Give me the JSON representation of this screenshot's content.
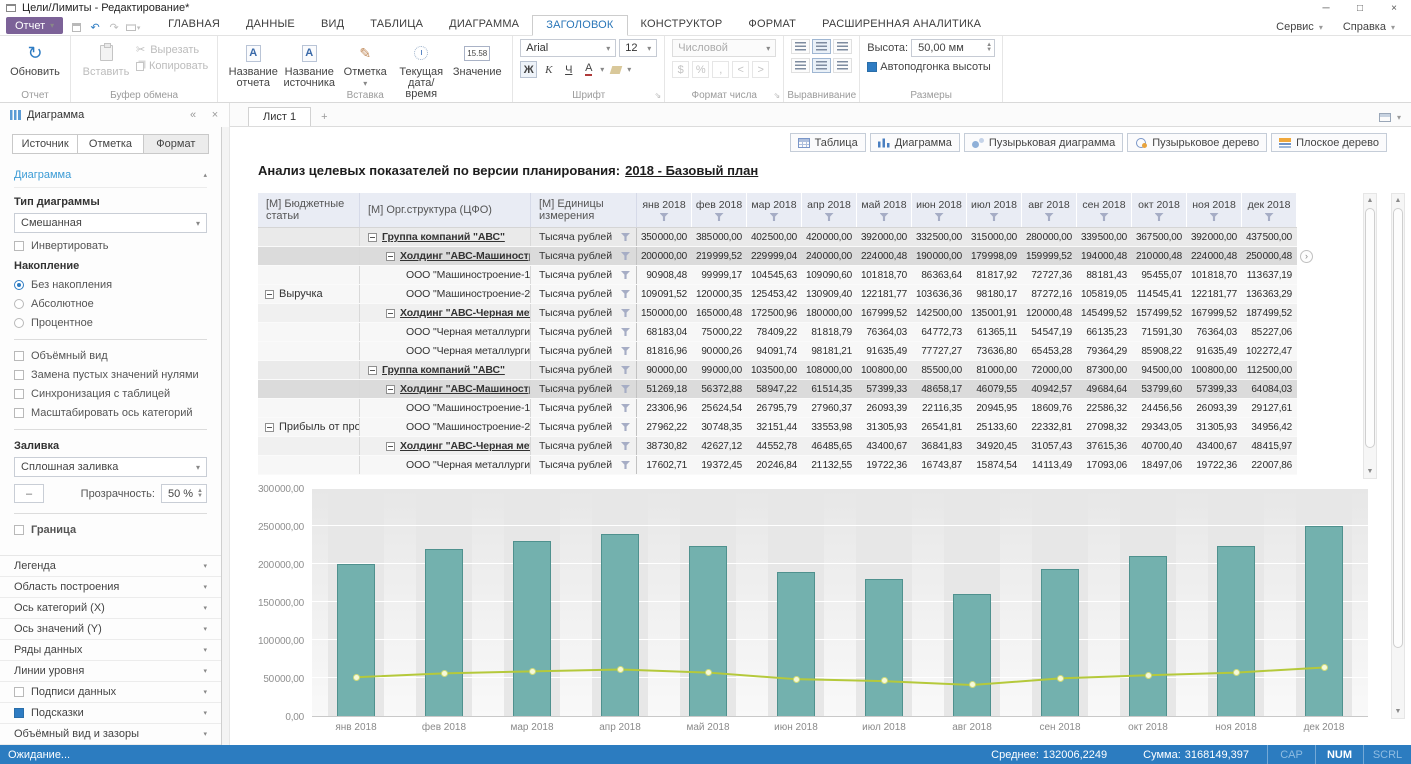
{
  "window": {
    "title": "Цели/Лимиты - Редактирование*",
    "minimize": "─",
    "maximize": "□",
    "close": "×"
  },
  "ribbon": {
    "report_button": "Отчет",
    "tabs": [
      {
        "label": "ГЛАВНАЯ"
      },
      {
        "label": "ДАННЫЕ"
      },
      {
        "label": "ВИД"
      },
      {
        "label": "ТАБЛИЦА"
      },
      {
        "label": "ДИАГРАММА"
      },
      {
        "label": "ЗАГОЛОВОК",
        "active": true
      },
      {
        "label": "КОНСТРУКТОР"
      },
      {
        "label": "ФОРМАТ"
      },
      {
        "label": "РАСШИРЕННАЯ АНАЛИТИКА"
      }
    ],
    "menus": [
      "Сервис",
      "Справка"
    ],
    "groups": {
      "report": {
        "label": "Отчет",
        "refresh": "Обновить"
      },
      "clipboard": {
        "label": "Буфер обмена",
        "paste": "Вставить",
        "cut": "Вырезать",
        "copy": "Копировать"
      },
      "insert": {
        "label": "Вставка",
        "report_name": "Название отчета",
        "source_name": "Название источника",
        "mark": "Отметка",
        "datetime": "Текущая дата/время",
        "value": "Значение",
        "value_icon": "15.58"
      },
      "font": {
        "label": "Шрифт",
        "family": "Arial",
        "size": "12",
        "bold": "Ж",
        "italic": "К",
        "underline": "Ч",
        "color": "А"
      },
      "number": {
        "label": "Формат числа",
        "format": "Числовой",
        "buttons": [
          "$",
          "%",
          ",",
          "<",
          ">"
        ]
      },
      "align": {
        "label": "Выравнивание"
      },
      "size": {
        "label": "Размеры",
        "height_label": "Высота:",
        "height_value": "50,00 мм",
        "autofit": "Автоподгонка высоты"
      }
    }
  },
  "left_panel": {
    "title": "Диаграмма",
    "tabs": [
      {
        "label": "Источник"
      },
      {
        "label": "Отметка"
      },
      {
        "label": "Формат",
        "active": true
      }
    ],
    "section": "Диаграмма",
    "type_label": "Тип диаграммы",
    "type_value": "Смешанная",
    "invert": "Инвертировать",
    "accum_label": "Накопление",
    "accum_options": [
      {
        "label": "Без накопления",
        "selected": true
      },
      {
        "label": "Абсолютное"
      },
      {
        "label": "Процентное"
      }
    ],
    "checkboxes": [
      "Объёмный вид",
      "Замена пустых значений нулями",
      "Синхронизация с таблицей",
      "Масштабировать ось категорий"
    ],
    "fill_label": "Заливка",
    "fill_value": "Сплошная заливка",
    "transparency_label": "Прозрачность:",
    "transparency_value": "50 %",
    "border_label": "Граница",
    "accordion": [
      {
        "label": "Легенда"
      },
      {
        "label": "Область построения"
      },
      {
        "label": "Ось категорий (X)"
      },
      {
        "label": "Ось значений (Y)"
      },
      {
        "label": "Ряды данных"
      },
      {
        "label": "Линии уровня"
      },
      {
        "label": "Подписи данных",
        "checkbox": "unchecked"
      },
      {
        "label": "Подсказки",
        "checkbox": "checked"
      },
      {
        "label": "Объёмный вид и зазоры"
      }
    ]
  },
  "sheet": {
    "tab": "Лист 1",
    "add": "+"
  },
  "main": {
    "view_buttons": [
      {
        "label": "Таблица",
        "icon": "table"
      },
      {
        "label": "Диаграмма",
        "icon": "bar-chart"
      },
      {
        "label": "Пузырьковая диаграмма",
        "icon": "bubble-chart"
      },
      {
        "label": "Пузырьковое дерево",
        "icon": "bubble-tree"
      },
      {
        "label": "Плоское дерево",
        "icon": "flat-tree"
      }
    ],
    "title_prefix": "Анализ целевых показателей по версии планирования:",
    "title_version": "2018 - Базовый план"
  },
  "table": {
    "dim_headers": [
      "[М] Бюджетные статьи",
      "[М] Орг.структура (ЦФО)",
      "[М] Единицы измерения"
    ],
    "months": [
      "янв 2018",
      "фев 2018",
      "мар 2018",
      "апр 2018",
      "май 2018",
      "июн 2018",
      "июл 2018",
      "авг 2018",
      "сен 2018",
      "окт 2018",
      "ноя 2018",
      "дек 2018"
    ],
    "units_value": "Тысяча рублей",
    "groups": [
      {
        "label": "Выручка",
        "start": 0,
        "span": 7
      },
      {
        "label": "Прибыль от продаж",
        "start": 7,
        "span": 6
      }
    ],
    "rows": [
      {
        "level": 0,
        "org": "Группа компаний \"АВС\"",
        "selected": false,
        "values": [
          "350 000,00",
          "385 000,00",
          "402 500,00",
          "420 000,00",
          "392 000,00",
          "332 500,00",
          "315 000,00",
          "280 000,00",
          "339 500,00",
          "367 500,00",
          "392 000,00",
          "437 500,00"
        ]
      },
      {
        "level": 1,
        "org": "Холдинг \"АВС-Машиностроение\"",
        "selected": true,
        "values": [
          "200 000,00",
          "219 999,52",
          "229 999,04",
          "240 000,00",
          "224 000,48",
          "190 000,00",
          "179 998,09",
          "159 999,52",
          "194 000,48",
          "210 000,48",
          "224 000,48",
          "250 000,48"
        ]
      },
      {
        "level": 2,
        "org": "ООО \"Машиностроение-1\"",
        "selected": false,
        "values": [
          "90 908,48",
          "99 999,17",
          "104 545,63",
          "109 090,60",
          "101 818,70",
          "86 363,64",
          "81 817,92",
          "72 727,36",
          "88 181,43",
          "95 455,07",
          "101 818,70",
          "113 637,19"
        ]
      },
      {
        "level": 2,
        "org": "ООО \"Машиностроение-2\"",
        "selected": false,
        "values": [
          "109 091,52",
          "120 000,35",
          "125 453,42",
          "130 909,40",
          "122 181,77",
          "103 636,36",
          "98 180,17",
          "87 272,16",
          "105 819,05",
          "114 545,41",
          "122 181,77",
          "136 363,29"
        ]
      },
      {
        "level": 1,
        "org": "Холдинг \"АВС-Черная металлургия\"",
        "selected": false,
        "values": [
          "150 000,00",
          "165 000,48",
          "172 500,96",
          "180 000,00",
          "167 999,52",
          "142 500,00",
          "135 001,91",
          "120 000,48",
          "145 499,52",
          "157 499,52",
          "167 999,52",
          "187 499,52"
        ]
      },
      {
        "level": 2,
        "org": "ООО \"Черная металлургия-1\"",
        "selected": false,
        "values": [
          "68 183,04",
          "75 000,22",
          "78 409,22",
          "81 818,79",
          "76 364,03",
          "64 772,73",
          "61 365,11",
          "54 547,19",
          "66 135,23",
          "71 591,30",
          "76 364,03",
          "85 227,06"
        ]
      },
      {
        "level": 2,
        "org": "ООО \"Черная металлургия-2\"",
        "selected": false,
        "values": [
          "81 816,96",
          "90 000,26",
          "94 091,74",
          "98 181,21",
          "91 635,49",
          "77 727,27",
          "73 636,80",
          "65 453,28",
          "79 364,29",
          "85 908,22",
          "91 635,49",
          "102 272,47"
        ]
      },
      {
        "level": 0,
        "org": "Группа компаний \"АВС\"",
        "selected": false,
        "values": [
          "90 000,00",
          "99 000,00",
          "103 500,00",
          "108 000,00",
          "100 800,00",
          "85 500,00",
          "81 000,00",
          "72 000,00",
          "87 300,00",
          "94 500,00",
          "100 800,00",
          "112 500,00"
        ]
      },
      {
        "level": 1,
        "org": "Холдинг \"АВС-Машиностроение\"",
        "selected": true,
        "values": [
          "51 269,18",
          "56 372,88",
          "58 947,22",
          "61 514,35",
          "57 399,33",
          "48 658,17",
          "46 079,55",
          "40 942,57",
          "49 684,64",
          "53 799,60",
          "57 399,33",
          "64 084,03"
        ]
      },
      {
        "level": 2,
        "org": "ООО \"Машиностроение-1\"",
        "selected": false,
        "values": [
          "23 306,96",
          "25 624,54",
          "26 795,79",
          "27 960,37",
          "26 093,39",
          "22 116,35",
          "20 945,95",
          "18 609,76",
          "22 586,32",
          "24 456,56",
          "26 093,39",
          "29 127,61"
        ]
      },
      {
        "level": 2,
        "org": "ООО \"Машиностроение-2\"",
        "selected": false,
        "values": [
          "27 962,22",
          "30 748,35",
          "32 151,44",
          "33 553,98",
          "31 305,93",
          "26 541,81",
          "25 133,60",
          "22 332,81",
          "27 098,32",
          "29 343,05",
          "31 305,93",
          "34 956,42"
        ]
      },
      {
        "level": 1,
        "org": "Холдинг \"АВС-Черная металлургия\"",
        "selected": false,
        "values": [
          "38 730,82",
          "42 627,12",
          "44 552,78",
          "46 485,65",
          "43 400,67",
          "36 841,83",
          "34 920,45",
          "31 057,43",
          "37 615,36",
          "40 700,40",
          "43 400,67",
          "48 415,97"
        ]
      },
      {
        "level": 2,
        "org": "ООО \"Черная металлургия-1\"",
        "selected": false,
        "values": [
          "17 602,71",
          "19 372,45",
          "20 246,84",
          "21 132,55",
          "19 722,36",
          "16 743,87",
          "15 874,54",
          "14 113,49",
          "17 093,06",
          "18 497,06",
          "19 722,36",
          "22 007,86"
        ]
      }
    ]
  },
  "chart_data": {
    "type": "bar",
    "subtype": "mixed bar+line",
    "categories": [
      "янв 2018",
      "фев 2018",
      "мар 2018",
      "апр 2018",
      "май 2018",
      "июн 2018",
      "июл 2018",
      "авг 2018",
      "сен 2018",
      "окт 2018",
      "ноя 2018",
      "дек 2018"
    ],
    "series": [
      {
        "name": "bar-series",
        "type": "bar",
        "values": [
          200000.0,
          219999.52,
          229999.04,
          240000.0,
          224000.48,
          190000.0,
          179998.09,
          159999.52,
          194000.48,
          210000.48,
          224000.48,
          250000.48
        ]
      },
      {
        "name": "line-series",
        "type": "line",
        "values": [
          51269.18,
          56372.88,
          58947.22,
          61514.35,
          57399.33,
          48658.17,
          46079.55,
          40942.57,
          49684.64,
          53799.6,
          57399.33,
          64084.03
        ]
      }
    ],
    "ylim": [
      0,
      300000
    ],
    "ytick_step": 50000,
    "ytick_labels": [
      "0,00",
      "50 000,00",
      "100 000,00",
      "150 000,00",
      "200 000,00",
      "250 000,00",
      "300 000,00"
    ],
    "grid": true,
    "legend": false
  },
  "status_bar": {
    "waiting": "Ожидание...",
    "average_label": "Среднее:",
    "average_value": "132006,2249",
    "sum_label": "Сумма:",
    "sum_value": "3168149,397",
    "indicators": [
      {
        "label": "CAP",
        "active": false
      },
      {
        "label": "NUM",
        "active": true
      },
      {
        "label": "SCRL",
        "active": false
      }
    ]
  },
  "colors": {
    "accent_purple": "#7c6298",
    "status_blue": "#2c7cc0",
    "bar_fill": "#73b1ae",
    "bar_border": "#4f918e",
    "line": "#b5c93b",
    "selection": "#dbdbdb",
    "active_blue": "#2e7cc3"
  }
}
